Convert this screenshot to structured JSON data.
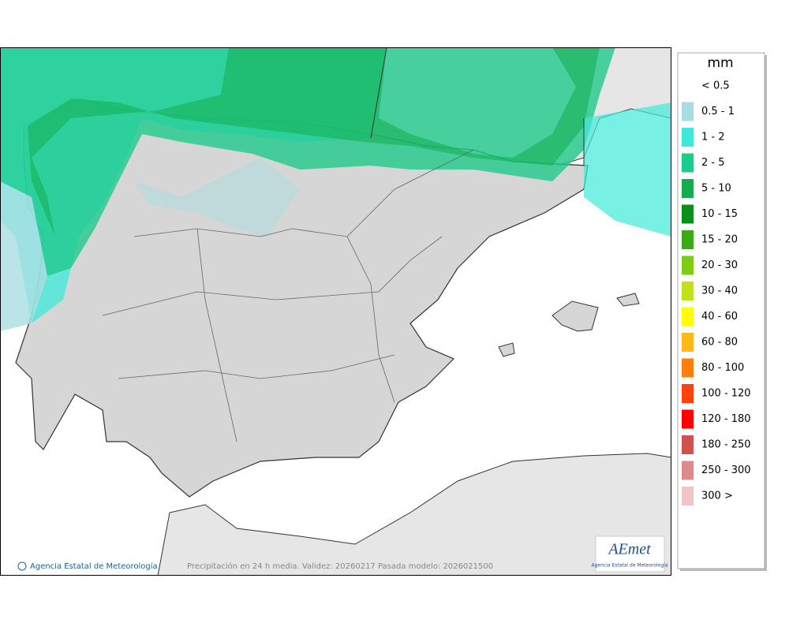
{
  "map": {
    "credit": "Agencia Estatal de Meteorología",
    "caption": "Precipitación en 24 h media. Validez: 20260217 Pasada modelo: 2026021500",
    "logo": {
      "name": "AEmet",
      "subtitle": "Agencia Estatal de Meteorología"
    }
  },
  "legend": {
    "title": "mm",
    "items": [
      {
        "label": "< 0.5"
      },
      {
        "label": "0.5 - 1",
        "color": "#a9dde2"
      },
      {
        "label": "1 - 2",
        "color": "#3ee9d9"
      },
      {
        "label": "2 - 5",
        "color": "#1fcb8c"
      },
      {
        "label": "5 - 10",
        "color": "#13ad4f"
      },
      {
        "label": "10 - 15",
        "color": "#0a901b"
      },
      {
        "label": "15 - 20",
        "color": "#3aab17"
      },
      {
        "label": "20 - 30",
        "color": "#7fcd12"
      },
      {
        "label": "30 - 40",
        "color": "#c1e21a"
      },
      {
        "label": "40 - 60",
        "color": "#ffff00"
      },
      {
        "label": "60 - 80",
        "color": "#ffb81a"
      },
      {
        "label": "80 - 100",
        "color": "#ff7e0e"
      },
      {
        "label": "100 - 120",
        "color": "#ff410f"
      },
      {
        "label": "120 - 180",
        "color": "#ff0000"
      },
      {
        "label": "180 - 250",
        "color": "#cd5252"
      },
      {
        "label": "250 - 300",
        "color": "#de8a8a"
      },
      {
        "label": "300 >",
        "color": "#efc5c5"
      }
    ]
  }
}
